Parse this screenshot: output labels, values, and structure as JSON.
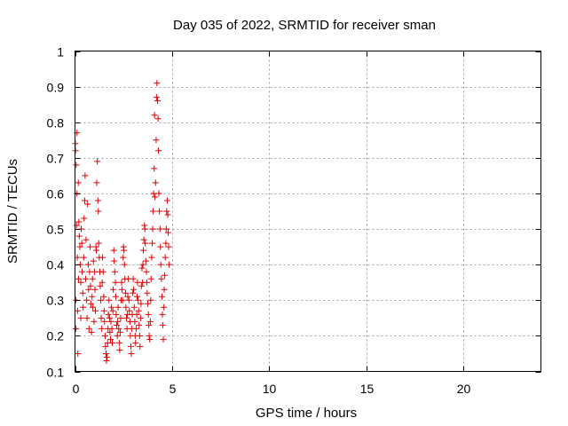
{
  "chart_data": {
    "type": "scatter",
    "title": "Day 035 of 2022, SRMTID for receiver sman",
    "xlabel": "GPS time / hours",
    "ylabel": "SRMTID / TECUs",
    "xlim": [
      0,
      24
    ],
    "ylim": [
      0.1,
      1.0
    ],
    "x_ticks": [
      0,
      5,
      10,
      15,
      20
    ],
    "x_tick_labels": [
      "0",
      "5",
      "10",
      "15",
      "20"
    ],
    "y_ticks": [
      0.1,
      0.2,
      0.3,
      0.4,
      0.5,
      0.6,
      0.7,
      0.8,
      0.9,
      1.0
    ],
    "y_tick_labels": [
      "0.1",
      "0.2",
      "0.3",
      "0.4",
      "0.5",
      "0.6",
      "0.7",
      "0.8",
      "0.9",
      "1"
    ],
    "grid": true,
    "marker": "+",
    "color": "#e00000",
    "series": [
      {
        "name": "SRMTID",
        "x": [
          0.02,
          0.03,
          0.05,
          0.05,
          0.06,
          0.08,
          0.1,
          0.1,
          0.12,
          0.13,
          0.15,
          0.17,
          0.18,
          0.2,
          0.22,
          0.25,
          0.27,
          0.3,
          0.3,
          0.32,
          0.35,
          0.37,
          0.4,
          0.42,
          0.45,
          0.47,
          0.5,
          0.52,
          0.55,
          0.57,
          0.6,
          0.62,
          0.65,
          0.68,
          0.7,
          0.72,
          0.75,
          0.78,
          0.8,
          0.82,
          0.85,
          0.88,
          0.9,
          0.92,
          0.95,
          0.98,
          1.0,
          1.03,
          1.05,
          1.08,
          1.1,
          1.12,
          1.15,
          1.18,
          1.2,
          1.22,
          1.25,
          1.28,
          1.3,
          1.33,
          1.35,
          1.38,
          1.4,
          1.42,
          1.45,
          1.48,
          1.5,
          1.52,
          1.55,
          1.57,
          1.6,
          1.62,
          1.65,
          1.68,
          1.7,
          1.72,
          1.75,
          1.78,
          1.8,
          1.83,
          1.85,
          1.88,
          1.9,
          1.92,
          1.95,
          1.97,
          2.0,
          2.02,
          2.05,
          2.08,
          2.1,
          2.12,
          2.15,
          2.18,
          2.2,
          2.22,
          2.25,
          2.28,
          2.3,
          2.33,
          2.35,
          2.38,
          2.4,
          2.42,
          2.45,
          2.48,
          2.5,
          2.52,
          2.55,
          2.57,
          2.6,
          2.62,
          2.65,
          2.68,
          2.7,
          2.72,
          2.75,
          2.78,
          2.8,
          2.83,
          2.85,
          2.88,
          2.9,
          2.92,
          2.95,
          2.98,
          3.0,
          3.02,
          3.05,
          3.08,
          3.1,
          3.12,
          3.15,
          3.18,
          3.2,
          3.22,
          3.25,
          3.28,
          3.3,
          3.33,
          3.35,
          3.38,
          3.4,
          3.42,
          3.45,
          3.48,
          3.5,
          3.52,
          3.55,
          3.58,
          3.6,
          3.62,
          3.65,
          3.68,
          3.7,
          3.72,
          3.75,
          3.78,
          3.8,
          3.82,
          3.85,
          3.88,
          3.9,
          3.92,
          3.95,
          3.98,
          4.0,
          4.02,
          4.05,
          4.08,
          4.1,
          4.12,
          4.15,
          4.18,
          4.2,
          4.22,
          4.25,
          4.28,
          4.3,
          4.32,
          4.35,
          4.38,
          4.4,
          4.42,
          4.45,
          4.48,
          4.5,
          4.52,
          4.55,
          4.58,
          4.6,
          4.62,
          4.65,
          4.68,
          4.7,
          4.72,
          4.75,
          4.78,
          4.8,
          4.82,
          4.85
        ],
        "y": [
          0.74,
          0.72,
          0.3,
          0.22,
          0.68,
          0.51,
          0.77,
          0.6,
          0.42,
          0.27,
          0.15,
          0.63,
          0.36,
          0.52,
          0.48,
          0.45,
          0.4,
          0.35,
          0.25,
          0.5,
          0.46,
          0.38,
          0.32,
          0.28,
          0.42,
          0.53,
          0.58,
          0.65,
          0.36,
          0.47,
          0.3,
          0.25,
          0.57,
          0.4,
          0.33,
          0.22,
          0.38,
          0.45,
          0.34,
          0.29,
          0.21,
          0.31,
          0.36,
          0.28,
          0.41,
          0.24,
          0.38,
          0.33,
          0.27,
          0.45,
          0.44,
          0.63,
          0.69,
          0.58,
          0.55,
          0.46,
          0.42,
          0.38,
          0.34,
          0.3,
          0.25,
          0.22,
          0.35,
          0.42,
          0.38,
          0.31,
          0.27,
          0.24,
          0.2,
          0.17,
          0.15,
          0.13,
          0.14,
          0.18,
          0.22,
          0.26,
          0.3,
          0.25,
          0.21,
          0.19,
          0.24,
          0.28,
          0.22,
          0.18,
          0.27,
          0.33,
          0.44,
          0.41,
          0.38,
          0.35,
          0.31,
          0.26,
          0.23,
          0.2,
          0.24,
          0.28,
          0.22,
          0.18,
          0.16,
          0.21,
          0.25,
          0.3,
          0.35,
          0.33,
          0.3,
          0.42,
          0.45,
          0.44,
          0.4,
          0.36,
          0.32,
          0.28,
          0.25,
          0.22,
          0.26,
          0.31,
          0.36,
          0.3,
          0.27,
          0.24,
          0.2,
          0.17,
          0.15,
          0.22,
          0.26,
          0.32,
          0.36,
          0.33,
          0.28,
          0.24,
          0.2,
          0.18,
          0.22,
          0.26,
          0.31,
          0.35,
          0.3,
          0.27,
          0.23,
          0.2,
          0.17,
          0.25,
          0.29,
          0.34,
          0.39,
          0.35,
          0.4,
          0.44,
          0.47,
          0.51,
          0.5,
          0.46,
          0.41,
          0.38,
          0.35,
          0.32,
          0.29,
          0.26,
          0.23,
          0.2,
          0.19,
          0.24,
          0.3,
          0.36,
          0.42,
          0.46,
          0.5,
          0.55,
          0.6,
          0.67,
          0.82,
          0.59,
          0.63,
          0.75,
          0.87,
          0.91,
          0.86,
          0.81,
          0.72,
          0.6,
          0.55,
          0.5,
          0.45,
          0.4,
          0.36,
          0.31,
          0.26,
          0.23,
          0.19,
          0.28,
          0.33,
          0.37,
          0.42,
          0.46,
          0.5,
          0.55,
          0.58,
          0.54,
          0.49,
          0.45,
          0.4
        ]
      }
    ]
  }
}
